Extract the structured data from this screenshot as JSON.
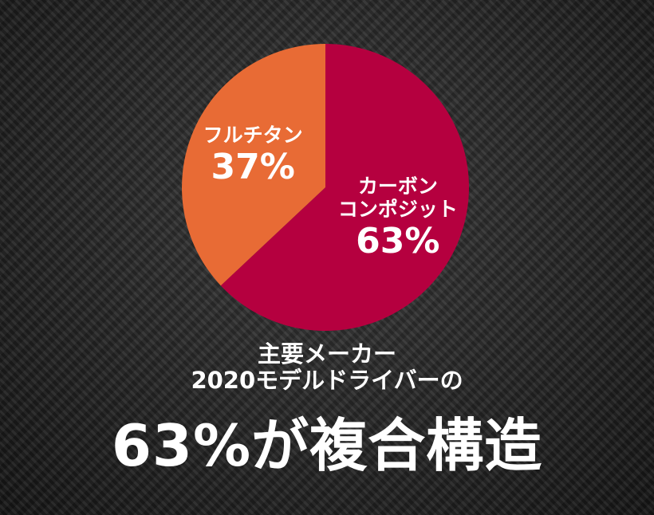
{
  "chart_data": {
    "type": "pie",
    "categories": [
      "カーボン\nコンポジット",
      "フルチタン"
    ],
    "values": [
      63,
      37
    ],
    "value_labels": [
      "63%",
      "37%"
    ],
    "colors": [
      "#b5003f",
      "#e86b35"
    ],
    "caption": "主要メーカー\n2020モデルドライバーの",
    "headline": "63%が複合構造"
  }
}
